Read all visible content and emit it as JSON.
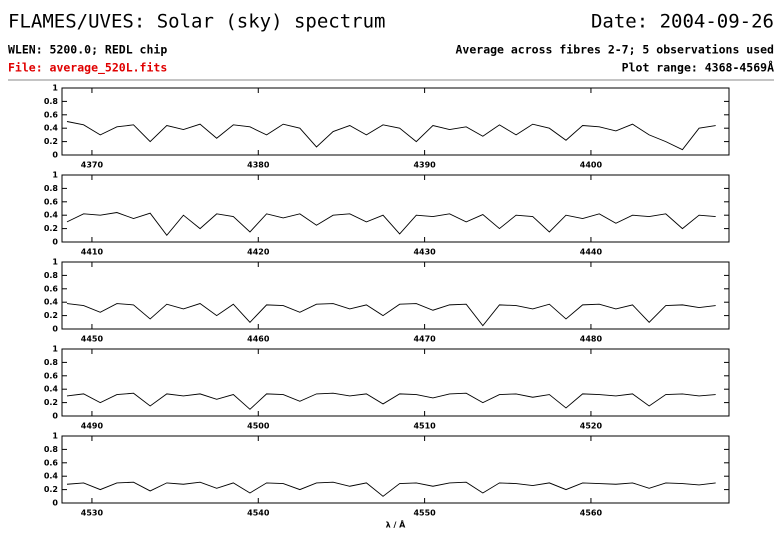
{
  "header": {
    "title": "FLAMES/UVES: Solar (sky) spectrum",
    "date": "Date: 2004-09-26",
    "wlen": "WLEN: 5200.0; REDL chip",
    "averaging": "Average across fibres 2-7; 5 observations used",
    "file": "File: average_520L.fits",
    "plot_range": "Plot range: 4368-4569Å"
  },
  "chart_data": [
    {
      "type": "line",
      "color": "#000000",
      "xlim": [
        4368.2,
        4408.3
      ],
      "ylim": [
        0,
        1
      ],
      "xticks": [
        4370,
        4380,
        4390,
        4400
      ],
      "yticks": [
        0,
        0.2,
        0.4,
        0.6,
        0.8,
        1
      ],
      "x": [
        4368.5,
        4369.5,
        4370.5,
        4371.5,
        4372.5,
        4373.5,
        4374.5,
        4375.5,
        4376.5,
        4377.5,
        4378.5,
        4379.5,
        4380.5,
        4381.5,
        4382.5,
        4383.5,
        4384.5,
        4385.5,
        4386.5,
        4387.5,
        4388.5,
        4389.5,
        4390.5,
        4391.5,
        4392.5,
        4393.5,
        4394.5,
        4395.5,
        4396.5,
        4397.5,
        4398.5,
        4399.5,
        4400.5,
        4401.5,
        4402.5,
        4403.5,
        4404.5,
        4405.5,
        4406.5,
        4407.5
      ],
      "values": [
        0.5,
        0.45,
        0.3,
        0.42,
        0.45,
        0.2,
        0.44,
        0.38,
        0.46,
        0.25,
        0.45,
        0.42,
        0.3,
        0.46,
        0.4,
        0.12,
        0.35,
        0.44,
        0.3,
        0.45,
        0.4,
        0.2,
        0.44,
        0.38,
        0.42,
        0.28,
        0.45,
        0.3,
        0.46,
        0.4,
        0.22,
        0.44,
        0.42,
        0.36,
        0.46,
        0.3,
        0.2,
        0.08,
        0.4,
        0.44
      ]
    },
    {
      "type": "line",
      "color": "#000000",
      "xlim": [
        4408.2,
        4448.3
      ],
      "ylim": [
        0,
        1
      ],
      "xticks": [
        4410,
        4420,
        4430,
        4440
      ],
      "yticks": [
        0,
        0.2,
        0.4,
        0.6,
        0.8,
        1
      ],
      "x": [
        4408.5,
        4409.5,
        4410.5,
        4411.5,
        4412.5,
        4413.5,
        4414.5,
        4415.5,
        4416.5,
        4417.5,
        4418.5,
        4419.5,
        4420.5,
        4421.5,
        4422.5,
        4423.5,
        4424.5,
        4425.5,
        4426.5,
        4427.5,
        4428.5,
        4429.5,
        4430.5,
        4431.5,
        4432.5,
        4433.5,
        4434.5,
        4435.5,
        4436.5,
        4437.5,
        4438.5,
        4439.5,
        4440.5,
        4441.5,
        4442.5,
        4443.5,
        4444.5,
        4445.5,
        4446.5,
        4447.5
      ],
      "values": [
        0.3,
        0.42,
        0.4,
        0.44,
        0.35,
        0.43,
        0.1,
        0.4,
        0.2,
        0.42,
        0.38,
        0.15,
        0.42,
        0.36,
        0.42,
        0.25,
        0.4,
        0.42,
        0.3,
        0.4,
        0.12,
        0.4,
        0.38,
        0.42,
        0.3,
        0.41,
        0.2,
        0.4,
        0.38,
        0.15,
        0.4,
        0.35,
        0.42,
        0.28,
        0.4,
        0.38,
        0.42,
        0.2,
        0.4,
        0.38
      ]
    },
    {
      "type": "line",
      "color": "#000000",
      "xlim": [
        4448.2,
        4488.3
      ],
      "ylim": [
        0,
        1
      ],
      "xticks": [
        4450,
        4460,
        4470,
        4480
      ],
      "yticks": [
        0,
        0.2,
        0.4,
        0.6,
        0.8,
        1
      ],
      "x": [
        4448.5,
        4449.5,
        4450.5,
        4451.5,
        4452.5,
        4453.5,
        4454.5,
        4455.5,
        4456.5,
        4457.5,
        4458.5,
        4459.5,
        4460.5,
        4461.5,
        4462.5,
        4463.5,
        4464.5,
        4465.5,
        4466.5,
        4467.5,
        4468.5,
        4469.5,
        4470.5,
        4471.5,
        4472.5,
        4473.5,
        4474.5,
        4475.5,
        4476.5,
        4477.5,
        4478.5,
        4479.5,
        4480.5,
        4481.5,
        4482.5,
        4483.5,
        4484.5,
        4485.5,
        4486.5,
        4487.5
      ],
      "values": [
        0.38,
        0.35,
        0.25,
        0.38,
        0.36,
        0.15,
        0.37,
        0.3,
        0.38,
        0.2,
        0.37,
        0.1,
        0.36,
        0.35,
        0.25,
        0.37,
        0.38,
        0.3,
        0.36,
        0.2,
        0.37,
        0.38,
        0.28,
        0.36,
        0.37,
        0.05,
        0.36,
        0.35,
        0.3,
        0.37,
        0.15,
        0.36,
        0.37,
        0.3,
        0.36,
        0.1,
        0.35,
        0.36,
        0.32,
        0.35
      ]
    },
    {
      "type": "line",
      "color": "#000000",
      "xlim": [
        4488.2,
        4528.3
      ],
      "ylim": [
        0,
        1
      ],
      "xticks": [
        4490,
        4500,
        4510,
        4520
      ],
      "yticks": [
        0,
        0.2,
        0.4,
        0.6,
        0.8,
        1
      ],
      "x": [
        4488.5,
        4489.5,
        4490.5,
        4491.5,
        4492.5,
        4493.5,
        4494.5,
        4495.5,
        4496.5,
        4497.5,
        4498.5,
        4499.5,
        4500.5,
        4501.5,
        4502.5,
        4503.5,
        4504.5,
        4505.5,
        4506.5,
        4507.5,
        4508.5,
        4509.5,
        4510.5,
        4511.5,
        4512.5,
        4513.5,
        4514.5,
        4515.5,
        4516.5,
        4517.5,
        4518.5,
        4519.5,
        4520.5,
        4521.5,
        4522.5,
        4523.5,
        4524.5,
        4525.5,
        4526.5,
        4527.5
      ],
      "values": [
        0.3,
        0.33,
        0.2,
        0.32,
        0.34,
        0.15,
        0.33,
        0.3,
        0.33,
        0.25,
        0.32,
        0.1,
        0.33,
        0.32,
        0.22,
        0.33,
        0.34,
        0.3,
        0.33,
        0.18,
        0.33,
        0.32,
        0.27,
        0.33,
        0.34,
        0.2,
        0.32,
        0.33,
        0.28,
        0.32,
        0.12,
        0.33,
        0.32,
        0.3,
        0.33,
        0.15,
        0.32,
        0.33,
        0.3,
        0.32
      ]
    },
    {
      "type": "line",
      "color": "#000000",
      "xlim": [
        4528.2,
        4568.3
      ],
      "ylim": [
        0,
        1
      ],
      "xticks": [
        4530,
        4540,
        4550,
        4560
      ],
      "yticks": [
        0,
        0.2,
        0.4,
        0.6,
        0.8,
        1
      ],
      "xlabel": "λ / Å",
      "x": [
        4528.5,
        4529.5,
        4530.5,
        4531.5,
        4532.5,
        4533.5,
        4534.5,
        4535.5,
        4536.5,
        4537.5,
        4538.5,
        4539.5,
        4540.5,
        4541.5,
        4542.5,
        4543.5,
        4544.5,
        4545.5,
        4546.5,
        4547.5,
        4548.5,
        4549.5,
        4550.5,
        4551.5,
        4552.5,
        4553.5,
        4554.5,
        4555.5,
        4556.5,
        4557.5,
        4558.5,
        4559.5,
        4560.5,
        4561.5,
        4562.5,
        4563.5,
        4564.5,
        4565.5,
        4566.5,
        4567.5
      ],
      "values": [
        0.28,
        0.3,
        0.2,
        0.3,
        0.31,
        0.18,
        0.3,
        0.28,
        0.31,
        0.22,
        0.3,
        0.15,
        0.3,
        0.29,
        0.2,
        0.3,
        0.31,
        0.25,
        0.3,
        0.1,
        0.29,
        0.3,
        0.25,
        0.3,
        0.31,
        0.15,
        0.3,
        0.29,
        0.26,
        0.3,
        0.2,
        0.3,
        0.29,
        0.28,
        0.3,
        0.22,
        0.3,
        0.29,
        0.27,
        0.3
      ]
    }
  ]
}
